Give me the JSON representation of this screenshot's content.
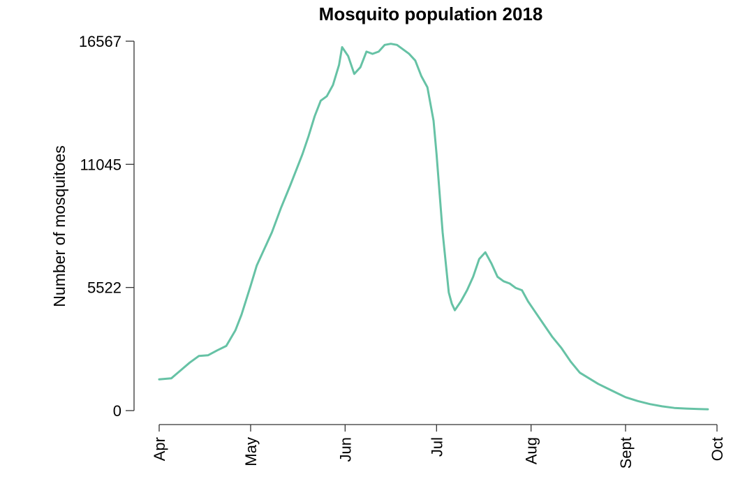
{
  "chart_data": {
    "type": "line",
    "title": "Mosquito population 2018",
    "xlabel": "",
    "ylabel": "Number of mosquitoes",
    "ylim": [
      0,
      16567
    ],
    "yticks": [
      0,
      5522,
      11045,
      16567
    ],
    "ytick_labels": [
      "0",
      "5522",
      "11045",
      "16567"
    ],
    "xlim": [
      "2018-04-01",
      "2018-10-01"
    ],
    "xticks": [
      "2018-04-01",
      "2018-05-01",
      "2018-06-01",
      "2018-07-01",
      "2018-08-01",
      "2018-09-01",
      "2018-10-01"
    ],
    "xtick_labels": [
      "Apr",
      "May",
      "Jun",
      "Jul",
      "Aug",
      "Sept",
      "Oct"
    ],
    "grid": false,
    "series": [
      {
        "color": "#66c2a5",
        "x": [
          "2018-04-01",
          "2018-04-05",
          "2018-04-08",
          "2018-04-11",
          "2018-04-14",
          "2018-04-17",
          "2018-04-20",
          "2018-04-23",
          "2018-04-26",
          "2018-04-28",
          "2018-05-01",
          "2018-05-03",
          "2018-05-06",
          "2018-05-08",
          "2018-05-11",
          "2018-05-14",
          "2018-05-16",
          "2018-05-18",
          "2018-05-20",
          "2018-05-22",
          "2018-05-24",
          "2018-05-26",
          "2018-05-28",
          "2018-05-30",
          "2018-05-31",
          "2018-06-02",
          "2018-06-04",
          "2018-06-06",
          "2018-06-08",
          "2018-06-10",
          "2018-06-12",
          "2018-06-14",
          "2018-06-16",
          "2018-06-18",
          "2018-06-20",
          "2018-06-22",
          "2018-06-24",
          "2018-06-26",
          "2018-06-28",
          "2018-06-30",
          "2018-07-01",
          "2018-07-03",
          "2018-07-05",
          "2018-07-06",
          "2018-07-07",
          "2018-07-09",
          "2018-07-11",
          "2018-07-13",
          "2018-07-15",
          "2018-07-17",
          "2018-07-19",
          "2018-07-21",
          "2018-07-23",
          "2018-07-25",
          "2018-07-27",
          "2018-07-29",
          "2018-07-31",
          "2018-08-02",
          "2018-08-05",
          "2018-08-08",
          "2018-08-11",
          "2018-08-14",
          "2018-08-17",
          "2018-08-20",
          "2018-08-23",
          "2018-08-26",
          "2018-08-29",
          "2018-09-01",
          "2018-09-05",
          "2018-09-09",
          "2018-09-13",
          "2018-09-17",
          "2018-09-21",
          "2018-09-25",
          "2018-09-28"
        ],
        "y": [
          1400,
          1450,
          1800,
          2150,
          2450,
          2480,
          2700,
          2900,
          3600,
          4300,
          5600,
          6500,
          7400,
          8000,
          9100,
          10100,
          10800,
          11500,
          12300,
          13200,
          13900,
          14100,
          14600,
          15500,
          16300,
          15900,
          15100,
          15400,
          16100,
          16000,
          16100,
          16400,
          16450,
          16400,
          16200,
          16000,
          15700,
          15000,
          14500,
          13000,
          11500,
          8000,
          5300,
          4800,
          4500,
          4900,
          5400,
          6000,
          6800,
          7100,
          6600,
          6000,
          5800,
          5700,
          5500,
          5400,
          4900,
          4500,
          3900,
          3300,
          2800,
          2200,
          1700,
          1450,
          1200,
          1000,
          800,
          600,
          430,
          290,
          190,
          120,
          90,
          70,
          60
        ]
      }
    ]
  }
}
